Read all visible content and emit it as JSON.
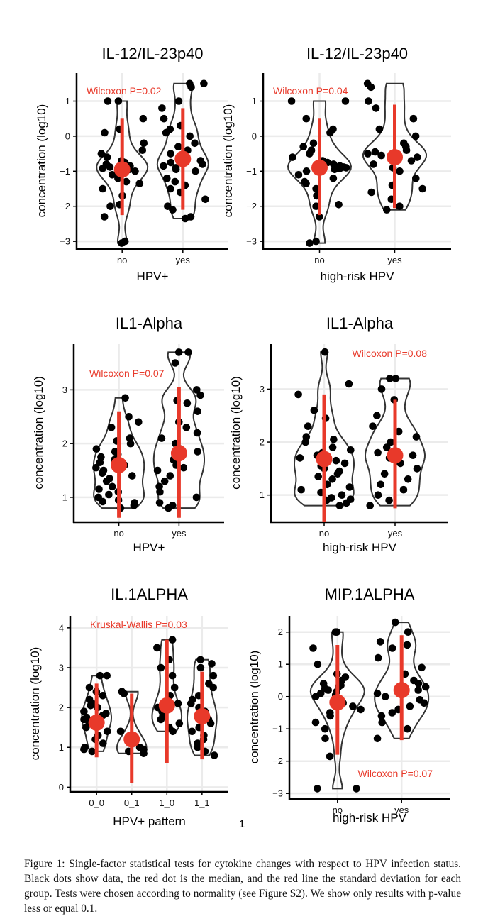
{
  "page_number": "1",
  "caption": "Figure 1: Single-factor statistical tests for cytokine changes with respect to HPV infection status. Black dots show data, the red dot is the median, and the red line the standard deviation for each group. Tests were chosen according to normality (see Figure S2). We show only results with p-value less or equal 0.1.",
  "colors": {
    "point": "#000000",
    "median": "#e8392a",
    "violin": "#333333",
    "grid": "#ebebeb",
    "annotation": "#e8392a"
  },
  "chart_data": [
    {
      "type": "violin",
      "title": "IL-12/IL-23p40",
      "xlabel": "HPV+",
      "ylabel": "concentration (log10)",
      "ylim": [
        -3.2,
        1.8
      ],
      "yticks": [
        -3,
        -2,
        -1,
        0,
        1
      ],
      "categories": [
        "no",
        "yes"
      ],
      "annotation": "Wilcoxon P=0.02",
      "annotation_pos": "top-left",
      "medians": [
        -0.95,
        -0.65
      ],
      "sd_ranges": [
        [
          -2.25,
          0.5
        ],
        [
          -2.1,
          0.8
        ]
      ],
      "points": [
        [
          -3.05,
          -3.0,
          -2.3,
          -2.0,
          -1.95,
          -1.7,
          -1.5,
          -1.35,
          -1.3,
          -1.2,
          -1.1,
          -1.0,
          -0.95,
          -0.92,
          -0.9,
          -0.88,
          -0.85,
          -0.8,
          -0.75,
          -0.7,
          -0.6,
          -0.5,
          -0.4,
          -0.2,
          0.1,
          0.2,
          0.5,
          1.0,
          1.0
        ],
        [
          -2.35,
          -2.3,
          -2.1,
          -2.0,
          -1.8,
          -1.6,
          -1.5,
          -1.4,
          -1.3,
          -1.2,
          -1.0,
          -0.95,
          -0.9,
          -0.85,
          -0.8,
          -0.75,
          -0.7,
          -0.6,
          -0.5,
          -0.4,
          -0.3,
          -0.2,
          0.0,
          0.1,
          0.2,
          0.3,
          0.5,
          0.8,
          1.0,
          1.4,
          1.5,
          1.5
        ]
      ]
    },
    {
      "type": "violin",
      "title": "IL-12/IL-23p40",
      "xlabel": "high-risk HPV",
      "ylabel": "concentration (log10)",
      "ylim": [
        -3.2,
        1.8
      ],
      "yticks": [
        -3,
        -2,
        -1,
        0,
        1
      ],
      "categories": [
        "no",
        "yes"
      ],
      "annotation": "Wilcoxon P=0.04",
      "annotation_pos": "top-left",
      "medians": [
        -0.9,
        -0.6
      ],
      "sd_ranges": [
        [
          -2.25,
          0.5
        ],
        [
          -2.05,
          0.9
        ]
      ],
      "points": [
        [
          -3.05,
          -3.0,
          -2.3,
          -2.0,
          -1.95,
          -1.7,
          -1.5,
          -1.35,
          -1.3,
          -1.2,
          -1.1,
          -1.0,
          -0.95,
          -0.92,
          -0.9,
          -0.88,
          -0.85,
          -0.8,
          -0.75,
          -0.7,
          -0.6,
          -0.5,
          -0.4,
          -0.3,
          -0.2,
          0.1,
          0.2,
          0.5,
          1.0,
          1.0
        ],
        [
          -2.1,
          -2.0,
          -1.8,
          -1.6,
          -1.5,
          -1.4,
          -1.2,
          -1.0,
          -0.9,
          -0.8,
          -0.7,
          -0.6,
          -0.55,
          -0.5,
          -0.45,
          -0.4,
          -0.3,
          -0.2,
          0.0,
          0.2,
          0.5,
          0.8,
          1.0,
          1.4,
          1.5
        ]
      ]
    },
    {
      "type": "violin",
      "title": "IL1-Alpha",
      "xlabel": "HPV+",
      "ylabel": "concentration (log10)",
      "ylim": [
        0.55,
        3.85
      ],
      "yticks": [
        1,
        2,
        3
      ],
      "categories": [
        "no",
        "yes"
      ],
      "annotation": "Wilcoxon P=0.07",
      "annotation_pos": "top-left",
      "medians": [
        1.6,
        1.82
      ],
      "sd_ranges": [
        [
          0.62,
          2.6
        ],
        [
          0.62,
          3.05
        ]
      ],
      "points": [
        [
          0.8,
          0.85,
          0.9,
          0.92,
          0.95,
          1.0,
          1.05,
          1.1,
          1.15,
          1.2,
          1.3,
          1.35,
          1.4,
          1.45,
          1.5,
          1.55,
          1.6,
          1.65,
          1.7,
          1.75,
          1.8,
          1.85,
          1.9,
          2.0,
          2.05,
          2.1,
          2.3,
          2.4,
          2.5,
          2.85
        ],
        [
          0.8,
          0.85,
          0.9,
          1.0,
          1.1,
          1.2,
          1.3,
          1.4,
          1.5,
          1.55,
          1.6,
          1.7,
          1.8,
          1.85,
          1.9,
          2.0,
          2.1,
          2.2,
          2.3,
          2.4,
          2.6,
          2.75,
          2.8,
          2.9,
          3.0,
          3.5,
          3.7,
          3.7
        ]
      ]
    },
    {
      "type": "violin",
      "title": "IL1-Alpha",
      "xlabel": "high-risk HPV",
      "ylabel": "concentration (log10)",
      "ylim": [
        0.5,
        3.85
      ],
      "yticks": [
        1,
        2,
        3
      ],
      "categories": [
        "no",
        "yes"
      ],
      "annotation": "Wilcoxon P=0.08",
      "annotation_pos": "top-right",
      "medians": [
        1.68,
        1.75
      ],
      "sd_ranges": [
        [
          0.5,
          2.9
        ],
        [
          0.75,
          2.8
        ]
      ],
      "points": [
        [
          0.8,
          0.85,
          0.9,
          0.92,
          0.95,
          1.0,
          1.05,
          1.1,
          1.15,
          1.2,
          1.3,
          1.35,
          1.4,
          1.45,
          1.5,
          1.55,
          1.6,
          1.65,
          1.7,
          1.75,
          1.8,
          1.85,
          1.9,
          2.0,
          2.05,
          2.1,
          2.3,
          2.45,
          2.6,
          2.9,
          3.1,
          3.7
        ],
        [
          0.8,
          0.9,
          1.0,
          1.1,
          1.2,
          1.3,
          1.4,
          1.5,
          1.6,
          1.7,
          1.75,
          1.8,
          1.9,
          2.0,
          2.1,
          2.2,
          2.3,
          2.5,
          2.8,
          3.0,
          3.2,
          3.2
        ]
      ]
    },
    {
      "type": "violin",
      "title": "IL.1ALPHA",
      "xlabel": "HPV+ pattern",
      "ylabel": "concentration (log10)",
      "ylim": [
        -0.1,
        4.3
      ],
      "yticks": [
        0,
        1,
        2,
        3,
        4
      ],
      "categories": [
        "0_0",
        "0_1",
        "1_0",
        "1_1"
      ],
      "annotation": "Kruskal-Wallis P=0.03",
      "annotation_pos": "top-left",
      "medians": [
        1.62,
        1.2,
        2.05,
        1.78
      ],
      "sd_ranges": [
        [
          0.75,
          2.6
        ],
        [
          0.1,
          2.35
        ],
        [
          0.6,
          3.7
        ],
        [
          0.7,
          2.9
        ]
      ],
      "points": [
        [
          0.9,
          0.95,
          1.0,
          1.1,
          1.2,
          1.3,
          1.4,
          1.5,
          1.55,
          1.6,
          1.65,
          1.7,
          1.75,
          1.8,
          1.85,
          1.9,
          2.0,
          2.05,
          2.1,
          2.2,
          2.3,
          2.4,
          2.5,
          2.8,
          2.8
        ],
        [
          0.85,
          0.9,
          0.95,
          1.0,
          1.2,
          1.4,
          2.35,
          2.4
        ],
        [
          1.4,
          1.5,
          1.6,
          1.7,
          1.8,
          1.9,
          2.0,
          2.1,
          2.3,
          2.5,
          2.8,
          3.0,
          3.2,
          3.5,
          3.7
        ],
        [
          0.8,
          0.9,
          1.0,
          1.1,
          1.2,
          1.3,
          1.4,
          1.5,
          1.6,
          1.7,
          1.75,
          1.8,
          1.9,
          2.0,
          2.1,
          2.2,
          2.3,
          2.5,
          2.6,
          2.8,
          3.0,
          3.1,
          3.2
        ]
      ]
    },
    {
      "type": "violin",
      "title": "MIP.1ALPHA",
      "xlabel": "high-risk HPV",
      "ylabel": "concentration (log10)",
      "ylim": [
        -3.15,
        2.5
      ],
      "yticks": [
        -3,
        -2,
        -1,
        0,
        1,
        2
      ],
      "categories": [
        "no",
        "yes"
      ],
      "annotation": "Wilcoxon P=0.07",
      "annotation_pos": "bottom-right",
      "medians": [
        -0.18,
        0.2
      ],
      "sd_ranges": [
        [
          -1.8,
          1.6
        ],
        [
          -1.35,
          1.9
        ]
      ],
      "points": [
        [
          -2.85,
          -2.85,
          -1.85,
          -1.3,
          -1.0,
          -0.8,
          -0.6,
          -0.5,
          -0.4,
          -0.3,
          -0.2,
          -0.1,
          0.0,
          0.05,
          0.1,
          0.15,
          0.2,
          0.25,
          0.3,
          0.35,
          0.4,
          0.5,
          0.6,
          0.7,
          1.0,
          1.5,
          2.0,
          2.0
        ],
        [
          -1.3,
          -1.0,
          -0.8,
          -0.6,
          -0.5,
          -0.4,
          -0.3,
          -0.2,
          -0.1,
          0.0,
          0.1,
          0.2,
          0.3,
          0.4,
          0.5,
          0.7,
          0.9,
          1.2,
          1.5,
          1.6,
          1.7,
          2.0,
          2.3
        ]
      ]
    }
  ]
}
